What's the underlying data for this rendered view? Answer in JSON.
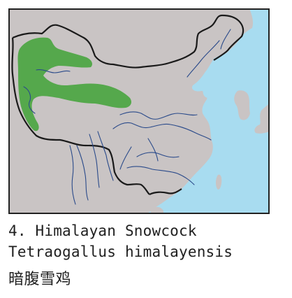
{
  "map": {
    "colors": {
      "sea": "#a8dcf0",
      "land": "#c9c4c4",
      "range": "#55a84c",
      "border": "#1a1a1a",
      "rivers": "#2a4a8a",
      "frame": "#222222"
    }
  },
  "caption": {
    "number_and_common_name": "4. Himalayan Snowcock",
    "scientific_name": "Tetraogallus himalayensis",
    "chinese_name": "暗腹雪鸡"
  }
}
